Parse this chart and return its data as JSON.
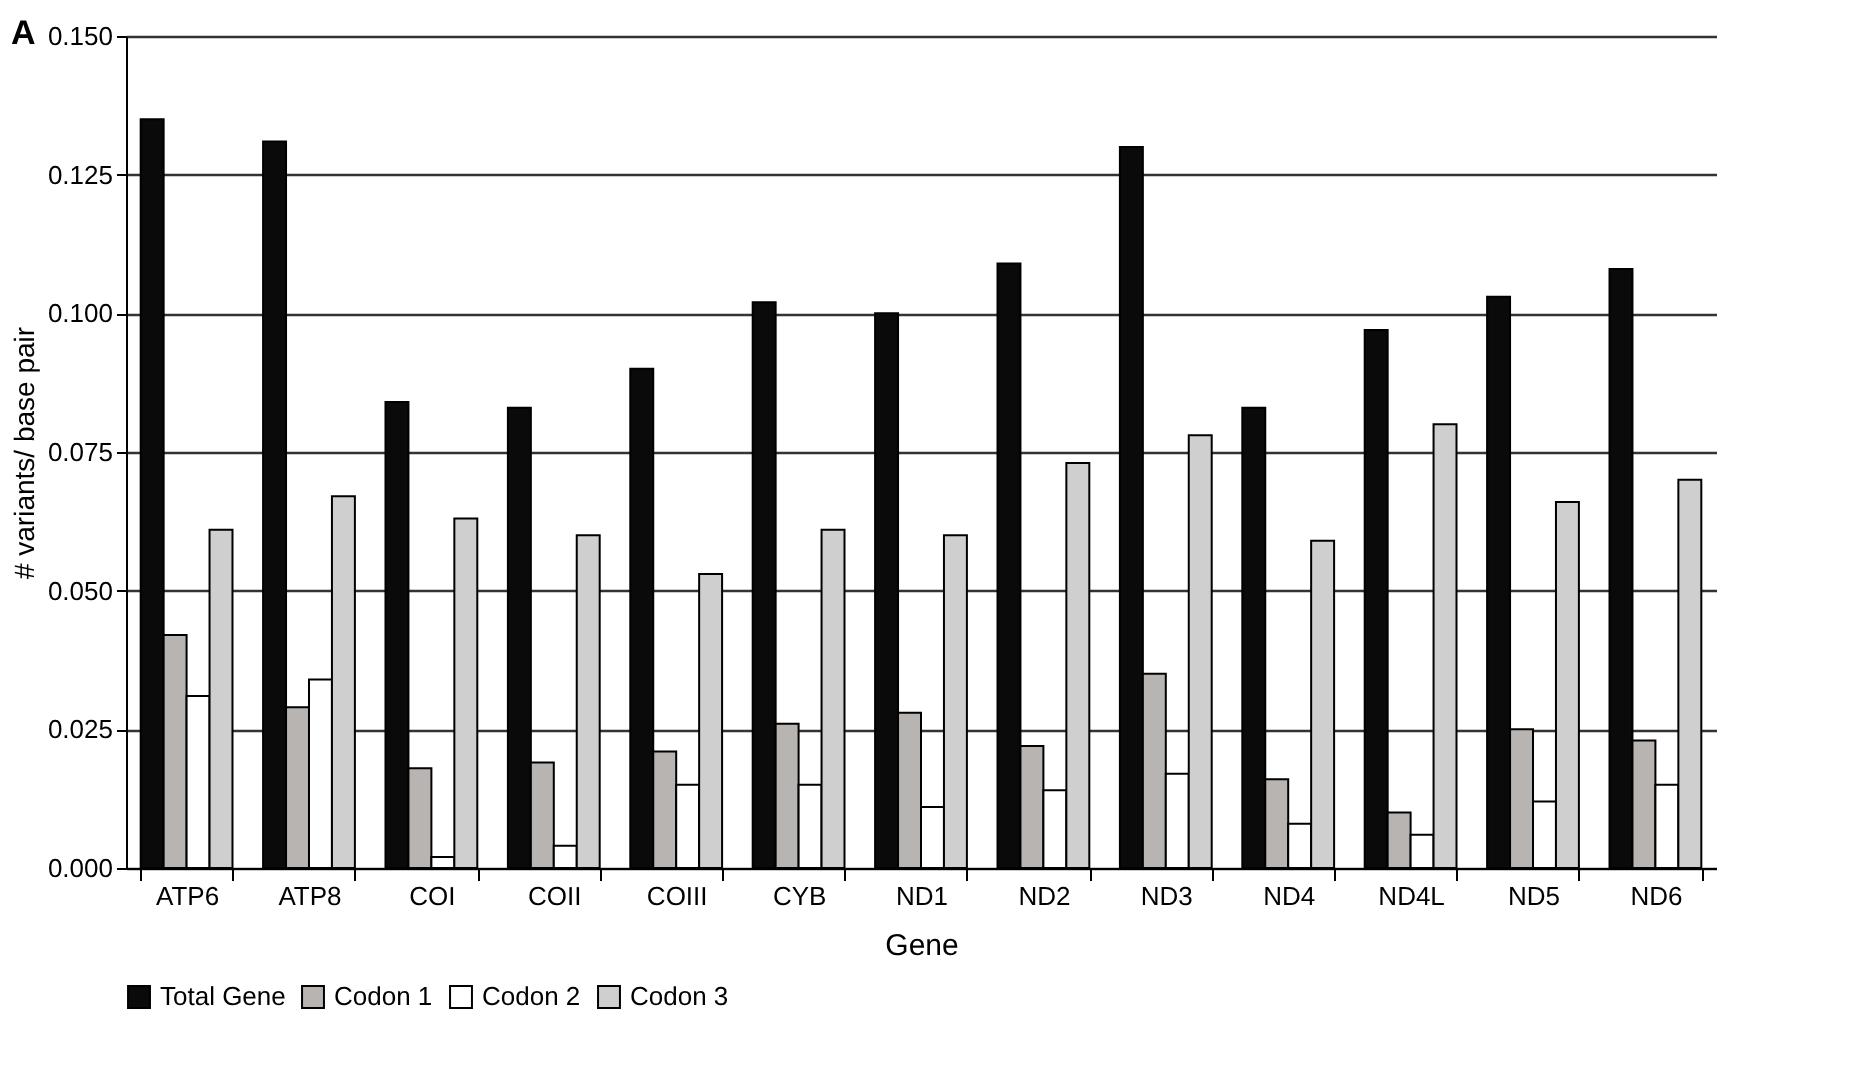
{
  "chart_data": {
    "type": "bar",
    "title": "A",
    "xlabel": "Gene",
    "ylabel": "# variants/ base pair",
    "categories": [
      "ATP6",
      "ATP8",
      "COI",
      "COII",
      "COIII",
      "CYB",
      "ND1",
      "ND2",
      "ND3",
      "ND4",
      "ND4L",
      "ND5",
      "ND6"
    ],
    "series": [
      {
        "name": "Total Gene",
        "color": "#0a0a0a",
        "values": [
          0.135,
          0.131,
          0.084,
          0.083,
          0.09,
          0.102,
          0.1,
          0.109,
          0.13,
          0.083,
          0.097,
          0.103,
          0.108
        ]
      },
      {
        "name": "Codon 1",
        "color": "#b8b4b2",
        "values": [
          0.042,
          0.029,
          0.018,
          0.019,
          0.021,
          0.026,
          0.028,
          0.022,
          0.035,
          0.016,
          0.01,
          0.025,
          0.023
        ]
      },
      {
        "name": "Codon 2",
        "color": "#ffffff",
        "values": [
          0.031,
          0.034,
          0.002,
          0.004,
          0.015,
          0.015,
          0.011,
          0.014,
          0.017,
          0.008,
          0.006,
          0.012,
          0.015
        ]
      },
      {
        "name": "Codon 3",
        "color": "#cfcfcf",
        "values": [
          0.061,
          0.067,
          0.063,
          0.06,
          0.053,
          0.061,
          0.06,
          0.073,
          0.078,
          0.059,
          0.08,
          0.066,
          0.07
        ]
      }
    ],
    "ylim": [
      0,
      0.15
    ],
    "yticks": [
      {
        "value": 0,
        "label": "0.000"
      },
      {
        "value": 0.025,
        "label": "0.025"
      },
      {
        "value": 0.05,
        "label": "0.050"
      },
      {
        "value": 0.075,
        "label": "0.075"
      },
      {
        "value": 0.1,
        "label": "0.100"
      },
      {
        "value": 0.125,
        "label": "0.125"
      },
      {
        "value": 0.15,
        "label": "0.150"
      }
    ],
    "grid": "y",
    "legend": "bottom"
  }
}
